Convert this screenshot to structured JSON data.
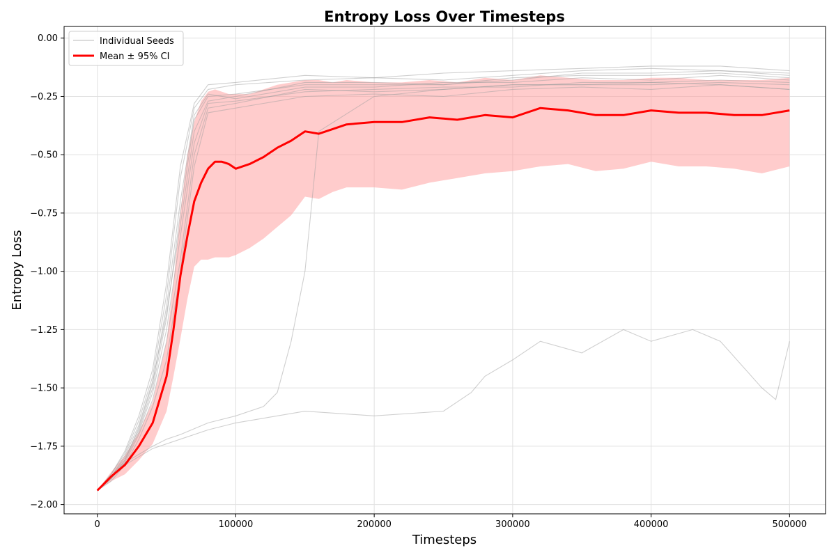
{
  "chart_data": {
    "type": "line",
    "title": "Entropy Loss Over Timesteps",
    "xlabel": "Timesteps",
    "ylabel": "Entropy Loss",
    "xlim": [
      -24000,
      526000
    ],
    "ylim": [
      -2.04,
      0.05
    ],
    "xticks": [
      0,
      100000,
      200000,
      300000,
      400000,
      500000
    ],
    "yticks": [
      0.0,
      -0.25,
      -0.5,
      -0.75,
      -1.0,
      -1.25,
      -1.5,
      -1.75,
      -2.0
    ],
    "ytick_labels": [
      "0.00",
      "−0.25",
      "−0.50",
      "−0.75",
      "−1.00",
      "−1.25",
      "−1.50",
      "−1.75",
      "−2.00"
    ],
    "grid": true,
    "legend_position": "top-left",
    "legend": [
      "Individual Seeds",
      "Mean ± 95% CI"
    ],
    "colors": {
      "seeds": "#a0a0a0",
      "mean": "#ff0000",
      "band": "#ff9999"
    },
    "mean_series": {
      "name": "Mean ± 95% CI",
      "x": [
        0,
        10000,
        20000,
        30000,
        40000,
        50000,
        55000,
        60000,
        65000,
        70000,
        75000,
        80000,
        85000,
        90000,
        95000,
        100000,
        110000,
        120000,
        130000,
        140000,
        150000,
        160000,
        170000,
        180000,
        200000,
        220000,
        240000,
        260000,
        280000,
        300000,
        320000,
        340000,
        360000,
        380000,
        400000,
        420000,
        440000,
        460000,
        480000,
        500000
      ],
      "y": [
        -1.94,
        -1.88,
        -1.83,
        -1.75,
        -1.65,
        -1.45,
        -1.25,
        -1.02,
        -0.85,
        -0.7,
        -0.62,
        -0.56,
        -0.53,
        -0.53,
        -0.54,
        -0.56,
        -0.54,
        -0.51,
        -0.47,
        -0.44,
        -0.4,
        -0.41,
        -0.39,
        -0.37,
        -0.36,
        -0.36,
        -0.34,
        -0.35,
        -0.33,
        -0.34,
        -0.3,
        -0.31,
        -0.33,
        -0.33,
        -0.31,
        -0.32,
        -0.32,
        -0.33,
        -0.33,
        -0.31
      ],
      "ci_upper": [
        -1.94,
        -1.86,
        -1.79,
        -1.69,
        -1.56,
        -1.3,
        -1.05,
        -0.75,
        -0.5,
        -0.36,
        -0.27,
        -0.23,
        -0.22,
        -0.23,
        -0.24,
        -0.24,
        -0.24,
        -0.22,
        -0.2,
        -0.19,
        -0.18,
        -0.18,
        -0.19,
        -0.18,
        -0.19,
        -0.19,
        -0.18,
        -0.19,
        -0.17,
        -0.18,
        -0.16,
        -0.17,
        -0.18,
        -0.18,
        -0.17,
        -0.17,
        -0.18,
        -0.18,
        -0.18,
        -0.17
      ],
      "ci_lower": [
        -1.94,
        -1.9,
        -1.87,
        -1.81,
        -1.74,
        -1.6,
        -1.45,
        -1.29,
        -1.12,
        -0.98,
        -0.95,
        -0.95,
        -0.94,
        -0.94,
        -0.94,
        -0.93,
        -0.9,
        -0.86,
        -0.81,
        -0.76,
        -0.68,
        -0.69,
        -0.66,
        -0.64,
        -0.64,
        -0.65,
        -0.62,
        -0.6,
        -0.58,
        -0.57,
        -0.55,
        -0.54,
        -0.57,
        -0.56,
        -0.53,
        -0.55,
        -0.55,
        -0.56,
        -0.58,
        -0.55
      ]
    },
    "seed_series": [
      {
        "x": [
          0,
          10000,
          20000,
          30000,
          40000,
          50000,
          60000,
          70000,
          80000,
          100000,
          150000,
          200000,
          250000,
          300000,
          350000,
          400000,
          450000,
          500000
        ],
        "y": [
          -1.94,
          -1.88,
          -1.8,
          -1.68,
          -1.5,
          -1.2,
          -0.75,
          -0.35,
          -0.25,
          -0.24,
          -0.2,
          -0.2,
          -0.2,
          -0.18,
          -0.15,
          -0.15,
          -0.14,
          -0.15
        ]
      },
      {
        "x": [
          0,
          10000,
          20000,
          30000,
          40000,
          50000,
          60000,
          70000,
          80000,
          100000,
          150000,
          200000,
          250000,
          300000,
          350000,
          400000,
          450000,
          500000
        ],
        "y": [
          -1.94,
          -1.87,
          -1.78,
          -1.64,
          -1.45,
          -1.1,
          -0.6,
          -0.3,
          -0.22,
          -0.2,
          -0.18,
          -0.17,
          -0.18,
          -0.16,
          -0.14,
          -0.13,
          -0.14,
          -0.16
        ]
      },
      {
        "x": [
          0,
          10000,
          20000,
          30000,
          40000,
          50000,
          60000,
          70000,
          80000,
          100000,
          150000,
          200000,
          250000,
          300000,
          350000,
          400000,
          450000,
          500000
        ],
        "y": [
          -1.94,
          -1.89,
          -1.82,
          -1.7,
          -1.55,
          -1.3,
          -0.95,
          -0.5,
          -0.3,
          -0.28,
          -0.22,
          -0.23,
          -0.22,
          -0.2,
          -0.2,
          -0.2,
          -0.19,
          -0.2
        ]
      },
      {
        "x": [
          0,
          10000,
          20000,
          30000,
          40000,
          50000,
          60000,
          70000,
          80000,
          100000,
          150000,
          200000,
          250000,
          300000,
          350000,
          400000,
          450000,
          500000
        ],
        "y": [
          -1.94,
          -1.88,
          -1.81,
          -1.67,
          -1.48,
          -1.15,
          -0.7,
          -0.33,
          -0.24,
          -0.26,
          -0.21,
          -0.21,
          -0.19,
          -0.19,
          -0.17,
          -0.18,
          -0.16,
          -0.18
        ]
      },
      {
        "x": [
          0,
          10000,
          20000,
          30000,
          40000,
          50000,
          60000,
          70000,
          80000,
          100000,
          150000,
          200000,
          250000,
          300000,
          350000,
          400000,
          450000,
          500000
        ],
        "y": [
          -1.94,
          -1.9,
          -1.83,
          -1.72,
          -1.58,
          -1.38,
          -1.0,
          -0.55,
          -0.32,
          -0.3,
          -0.25,
          -0.24,
          -0.25,
          -0.22,
          -0.21,
          -0.22,
          -0.2,
          -0.22
        ]
      },
      {
        "x": [
          0,
          10000,
          20000,
          30000,
          40000,
          50000,
          60000,
          70000,
          80000,
          100000,
          150000,
          200000,
          250000,
          300000,
          350000,
          400000,
          450000,
          500000
        ],
        "y": [
          -1.94,
          -1.88,
          -1.79,
          -1.66,
          -1.47,
          -1.18,
          -0.8,
          -0.4,
          -0.27,
          -0.25,
          -0.19,
          -0.19,
          -0.2,
          -0.17,
          -0.16,
          -0.16,
          -0.15,
          -0.17
        ]
      },
      {
        "x": [
          0,
          10000,
          20000,
          30000,
          40000,
          50000,
          60000,
          70000,
          80000,
          100000,
          150000,
          200000,
          250000,
          300000,
          350000,
          400000,
          450000,
          500000
        ],
        "y": [
          -1.94,
          -1.89,
          -1.81,
          -1.69,
          -1.52,
          -1.25,
          -0.85,
          -0.45,
          -0.28,
          -0.27,
          -0.23,
          -0.22,
          -0.21,
          -0.21,
          -0.19,
          -0.19,
          -0.18,
          -0.19
        ]
      },
      {
        "x": [
          0,
          10000,
          20000,
          30000,
          40000,
          50000,
          60000,
          70000,
          80000,
          100000,
          150000,
          200000,
          250000,
          300000,
          350000,
          400000,
          450000,
          500000
        ],
        "y": [
          -1.94,
          -1.87,
          -1.77,
          -1.62,
          -1.42,
          -1.05,
          -0.55,
          -0.28,
          -0.2,
          -0.19,
          -0.16,
          -0.17,
          -0.15,
          -0.14,
          -0.13,
          -0.12,
          -0.12,
          -0.14
        ]
      },
      {
        "x": [
          0,
          20000,
          40000,
          50000,
          60000,
          80000,
          100000,
          120000,
          130000,
          140000,
          150000,
          160000,
          200000,
          250000,
          300000,
          350000,
          400000,
          450000,
          500000
        ],
        "y": [
          -1.94,
          -1.82,
          -1.75,
          -1.72,
          -1.7,
          -1.65,
          -1.62,
          -1.58,
          -1.52,
          -1.3,
          -1.0,
          -0.4,
          -0.25,
          -0.22,
          -0.2,
          -0.2,
          -0.19,
          -0.2,
          -0.22
        ]
      },
      {
        "x": [
          0,
          20000,
          40000,
          60000,
          80000,
          100000,
          150000,
          200000,
          250000,
          270000,
          280000,
          300000,
          320000,
          350000,
          380000,
          400000,
          430000,
          450000,
          480000,
          490000,
          500000
        ],
        "y": [
          -1.94,
          -1.83,
          -1.76,
          -1.72,
          -1.68,
          -1.65,
          -1.6,
          -1.62,
          -1.6,
          -1.52,
          -1.45,
          -1.38,
          -1.3,
          -1.35,
          -1.25,
          -1.3,
          -1.25,
          -1.3,
          -1.5,
          -1.55,
          -1.3
        ]
      }
    ]
  }
}
